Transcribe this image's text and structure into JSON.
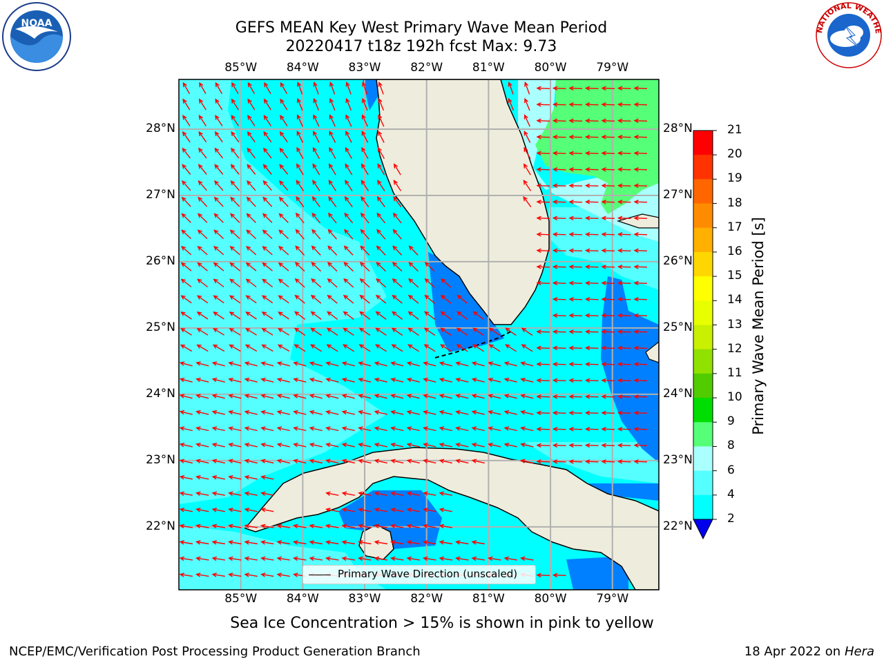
{
  "title": {
    "line1": "GEFS MEAN Key West Primary Wave Mean Period",
    "line2": "20220417 t18z 192h fcst   Max: 9.73"
  },
  "logos": {
    "left": {
      "icon": "noaa-logo-icon",
      "text": "NOAA"
    },
    "right": {
      "icon": "nws-logo-icon",
      "text": "NATIONAL WEATHER SERVICE"
    }
  },
  "map": {
    "lon_ticks": [
      "85°W",
      "84°W",
      "83°W",
      "82°W",
      "81°W",
      "80°W",
      "79°W"
    ],
    "lat_ticks": [
      "28°N",
      "27°N",
      "26°N",
      "25°N",
      "24°N",
      "23°N",
      "22°N"
    ],
    "lon_values": [
      -85,
      -84,
      -83,
      -82,
      -81,
      -80,
      -79
    ],
    "lat_values": [
      28,
      27,
      26,
      25,
      24,
      23,
      22
    ],
    "lon_range": [
      -86,
      -78.25
    ],
    "lat_range": [
      21.05,
      28.75
    ],
    "colors": {
      "land": "#eeecdc",
      "coast": "#000000",
      "grid": "#b0b0b0",
      "arrow": "#ff0000"
    }
  },
  "legend": {
    "label": "Primary Wave Direction (unscaled)"
  },
  "colorbar": {
    "title": "Primary Wave Mean Period [s]",
    "labels": [
      "21",
      "20",
      "19",
      "18",
      "17",
      "16",
      "15",
      "14",
      "13",
      "12",
      "11",
      "10",
      "9",
      "8",
      "6",
      "4",
      "2"
    ],
    "colors": [
      "#ff0000",
      "#ff3300",
      "#ff6600",
      "#ff8c00",
      "#ffb000",
      "#ffd700",
      "#ffff00",
      "#e8ff00",
      "#c8f000",
      "#90e000",
      "#50cc00",
      "#00dd00",
      "#55ff77",
      "#aaffff",
      "#55ffff",
      "#00ffff",
      "#0080ff",
      "#0000ee"
    ]
  },
  "footnote": "Sea Ice Concentration > 15% is shown in pink to yellow",
  "footer": {
    "left": "NCEP/EMC/Verification Post Processing Product Generation Branch",
    "right_prefix": "18 Apr 2022 on ",
    "right_host": "Hera"
  }
}
